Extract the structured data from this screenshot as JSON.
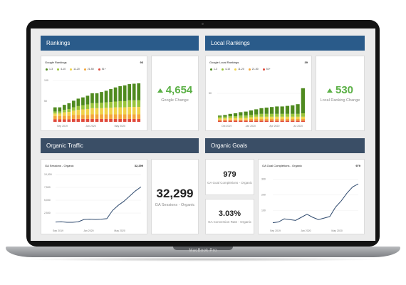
{
  "device": {
    "label": "MacBook Pro"
  },
  "sections": {
    "rankings": "Rankings",
    "local_rankings": "Local Rankings",
    "organic_traffic": "Organic Traffic",
    "organic_goals": "Organic Goals"
  },
  "rankings_chart": {
    "title": "Google Rankings",
    "total": "93"
  },
  "local_chart": {
    "title": "Google Local Rankings",
    "total": "39"
  },
  "legend": {
    "items": [
      "1-3",
      "4-10",
      "11-20",
      "21-50",
      "51+"
    ],
    "colors": [
      "#4f8a1f",
      "#9ac43a",
      "#f0d24a",
      "#f4a53a",
      "#e04a3c"
    ]
  },
  "kpis": {
    "google_change": {
      "value": "4,654",
      "label": "Google Change"
    },
    "local_change": {
      "value": "530",
      "label": "Local Ranking Change"
    },
    "sessions": {
      "value": "32,299",
      "label": "GA Sessions - Organic"
    },
    "goal_completions": {
      "value": "979",
      "label": "GA Goal Completions - Organic"
    },
    "conversion_rate": {
      "value": "3.03%",
      "label": "GA Conversion Rate - Organic"
    }
  },
  "sessions_chart": {
    "title": "GA Sessions - Organic",
    "total": "32,299"
  },
  "goals_chart": {
    "title": "GA Goal Completions - Organic",
    "total": "979"
  },
  "chart_data": [
    {
      "type": "bar",
      "title": "Google Rankings",
      "categories": [
        "",
        "",
        "",
        "",
        "",
        "",
        "",
        "",
        "",
        "",
        "",
        "",
        "",
        "",
        "",
        "",
        "",
        "",
        ""
      ],
      "tick_labels": [
        "Sep 2019",
        "Jan 2020",
        "May 2020"
      ],
      "y_ticks": [
        "100",
        "50"
      ],
      "ylim": [
        0,
        110
      ],
      "series": [
        {
          "name": "51+",
          "values": [
            6,
            6,
            6,
            6,
            7,
            7,
            7,
            7,
            7,
            7,
            7,
            7,
            7,
            7,
            7,
            7,
            7,
            7,
            7
          ]
        },
        {
          "name": "21-50",
          "values": [
            8,
            8,
            9,
            9,
            10,
            10,
            10,
            10,
            11,
            11,
            11,
            11,
            11,
            11,
            11,
            11,
            11,
            11,
            11
          ]
        },
        {
          "name": "11-20",
          "values": [
            6,
            6,
            8,
            9,
            10,
            12,
            13,
            14,
            15,
            15,
            15,
            16,
            16,
            17,
            17,
            17,
            18,
            18,
            18
          ]
        },
        {
          "name": "4-10",
          "values": [
            5,
            5,
            6,
            7,
            8,
            9,
            10,
            11,
            12,
            12,
            13,
            13,
            14,
            14,
            15,
            15,
            16,
            16,
            16
          ]
        },
        {
          "name": "1-3",
          "values": [
            10,
            10,
            12,
            14,
            16,
            18,
            19,
            21,
            24,
            24,
            26,
            28,
            31,
            34,
            36,
            38,
            39,
            40,
            41
          ]
        }
      ]
    },
    {
      "type": "bar",
      "title": "Google Local Rankings",
      "categories": [
        "",
        "",
        "",
        "",
        "",
        "",
        "",
        "",
        "",
        "",
        "",
        "",
        "",
        "",
        "",
        "",
        ""
      ],
      "tick_labels": [
        "Oct 2019",
        "Jan 2020",
        "Apr 2020",
        "Jul 2020"
      ],
      "y_ticks": [
        "50"
      ],
      "ylim": [
        0,
        80
      ],
      "series": [
        {
          "name": "51+",
          "values": [
            2,
            2,
            2,
            2,
            2,
            2,
            2,
            2,
            2,
            2,
            2,
            2,
            2,
            2,
            2,
            2,
            2
          ]
        },
        {
          "name": "21-50",
          "values": [
            2,
            2,
            2,
            2,
            2,
            2,
            3,
            3,
            3,
            3,
            3,
            3,
            3,
            3,
            3,
            3,
            3
          ]
        },
        {
          "name": "11-20",
          "values": [
            2,
            2,
            3,
            3,
            3,
            3,
            3,
            4,
            4,
            4,
            4,
            4,
            4,
            4,
            4,
            4,
            4
          ]
        },
        {
          "name": "4-10",
          "values": [
            3,
            3,
            3,
            3,
            4,
            4,
            4,
            4,
            5,
            5,
            5,
            5,
            5,
            5,
            5,
            5,
            6
          ]
        },
        {
          "name": "1-3",
          "values": [
            2,
            3,
            4,
            5,
            6,
            7,
            8,
            9,
            10,
            11,
            12,
            13,
            13,
            14,
            15,
            17,
            44
          ]
        }
      ]
    },
    {
      "type": "line",
      "title": "GA Sessions - Organic",
      "tick_labels": [
        "Sep 2019",
        "Jan 2020",
        "May 2020"
      ],
      "y_ticks": [
        "10,000",
        "7,500",
        "5,000",
        "2,500"
      ],
      "ylim": [
        0,
        10000
      ],
      "x": [
        0,
        1,
        2,
        3,
        4,
        5,
        6,
        7,
        8,
        9,
        10,
        11,
        12,
        13,
        14,
        15
      ],
      "series": [
        {
          "values": [
            750,
            800,
            700,
            700,
            800,
            1250,
            1300,
            1250,
            1300,
            1400,
            3000,
            4000,
            4800,
            5800,
            6800,
            7600
          ]
        }
      ]
    },
    {
      "type": "line",
      "title": "GA Goal Completions - Organic",
      "tick_labels": [
        "Sep 2019",
        "Jan 2020",
        "May 2020"
      ],
      "y_ticks": [
        "300",
        "200",
        "100"
      ],
      "ylim": [
        0,
        330
      ],
      "x": [
        0,
        1,
        2,
        3,
        4,
        5,
        6,
        7,
        8,
        9,
        10,
        11,
        12,
        13,
        14,
        15
      ],
      "series": [
        {
          "values": [
            20,
            25,
            45,
            40,
            35,
            55,
            75,
            55,
            40,
            50,
            60,
            120,
            160,
            210,
            250,
            270
          ]
        }
      ]
    }
  ]
}
